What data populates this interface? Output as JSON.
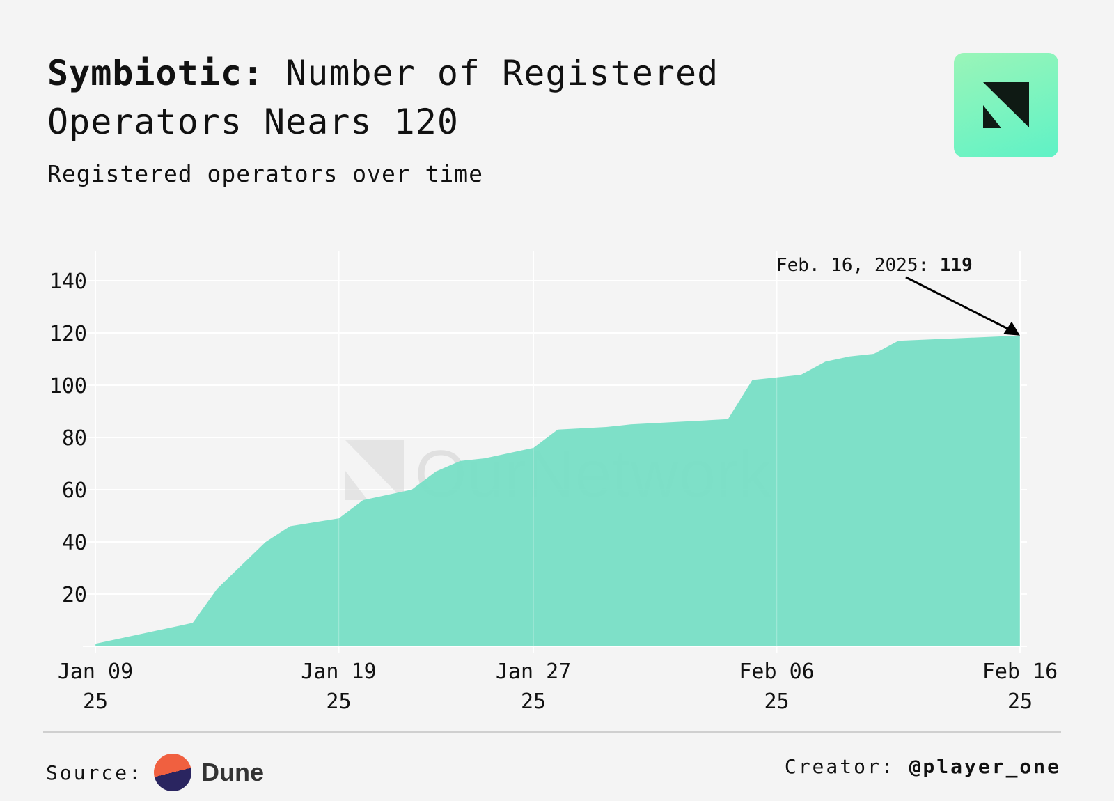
{
  "header": {
    "title_bold": "Symbiotic:",
    "title_rest": " Number of Registered Operators Nears 120",
    "subtitle": "Registered operators over time"
  },
  "watermark": "OurNetwork",
  "footer": {
    "source_label": "Source:",
    "source_name": "Dune",
    "creator_label": "Creator:",
    "creator_handle": "@player_one"
  },
  "colors": {
    "area": "#7adfc6",
    "background": "#f4f4f4",
    "grid": "#ffffff"
  },
  "chart_data": {
    "type": "area",
    "title": "Symbiotic: Number of Registered Operators Nears 120",
    "subtitle": "Registered operators over time",
    "xlabel": "",
    "ylabel": "",
    "ylim": [
      0,
      150
    ],
    "grid": true,
    "x_ticks": [
      {
        "date": "2025-01-09",
        "label1": "Jan 09",
        "label2": "25"
      },
      {
        "date": "2025-01-19",
        "label1": "Jan 19",
        "label2": "25"
      },
      {
        "date": "2025-01-27",
        "label1": "Jan 27",
        "label2": "25"
      },
      {
        "date": "2025-02-06",
        "label1": "Feb 06",
        "label2": "25"
      },
      {
        "date": "2025-02-16",
        "label1": "Feb 16",
        "label2": "25"
      }
    ],
    "y_ticks": [
      "20",
      "40",
      "60",
      "80",
      "100",
      "120",
      "140"
    ],
    "x": [
      "2025-01-09",
      "2025-01-13",
      "2025-01-14",
      "2025-01-16",
      "2025-01-17",
      "2025-01-19",
      "2025-01-20",
      "2025-01-22",
      "2025-01-23",
      "2025-01-24",
      "2025-01-25",
      "2025-01-27",
      "2025-01-28",
      "2025-01-30",
      "2025-01-31",
      "2025-02-04",
      "2025-02-05",
      "2025-02-07",
      "2025-02-08",
      "2025-02-09",
      "2025-02-10",
      "2025-02-11",
      "2025-02-16"
    ],
    "values": [
      1,
      9,
      22,
      40,
      46,
      49,
      56,
      60,
      67,
      71,
      72,
      76,
      83,
      84,
      85,
      87,
      102,
      104,
      109,
      111,
      112,
      117,
      119
    ],
    "annotation": {
      "date": "2025-02-16",
      "label": "Feb. 16, 2025: ",
      "value": "119"
    }
  }
}
